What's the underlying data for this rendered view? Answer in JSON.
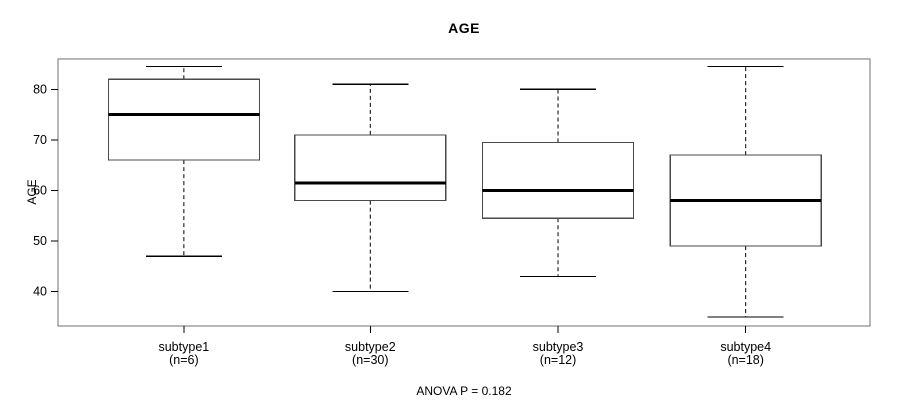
{
  "figure": {
    "title": "AGE",
    "y_axis_title": "AGE",
    "annotation": "ANOVA P = 0.182"
  },
  "chart_data": {
    "type": "boxplot",
    "title": "AGE",
    "xlabel": "",
    "ylabel": "AGE",
    "yticks": [
      40,
      50,
      60,
      70,
      80
    ],
    "ylim": [
      33.2,
      86.0
    ],
    "grid": false,
    "legend": "none",
    "annotation": "ANOVA P = 0.182",
    "categories": [
      "subtype1",
      "subtype2",
      "subtype3",
      "subtype4"
    ],
    "groups": [
      {
        "label": "subtype1",
        "n_label": "(n=6)",
        "n": 6,
        "whisker_low": 47,
        "q1": 66,
        "median": 75,
        "q3": 82,
        "whisker_high": 84.5
      },
      {
        "label": "subtype2",
        "n_label": "(n=30)",
        "n": 30,
        "whisker_low": 40,
        "q1": 58,
        "median": 61.5,
        "q3": 71,
        "whisker_high": 81
      },
      {
        "label": "subtype3",
        "n_label": "(n=12)",
        "n": 12,
        "whisker_low": 43,
        "q1": 54.5,
        "median": 60,
        "q3": 69.5,
        "whisker_high": 80
      },
      {
        "label": "subtype4",
        "n_label": "(n=18)",
        "n": 18,
        "whisker_low": 35,
        "q1": 49,
        "median": 58,
        "q3": 67,
        "whisker_high": 84.5
      }
    ],
    "colors": {
      "frame": "#6f6f6f",
      "box_border": "#4a4a4a",
      "box_fill": "#ffffff",
      "median": "#000000",
      "whisker": "#000000",
      "tick": "#000000",
      "text": "#000000",
      "background": "#ffffff"
    }
  }
}
